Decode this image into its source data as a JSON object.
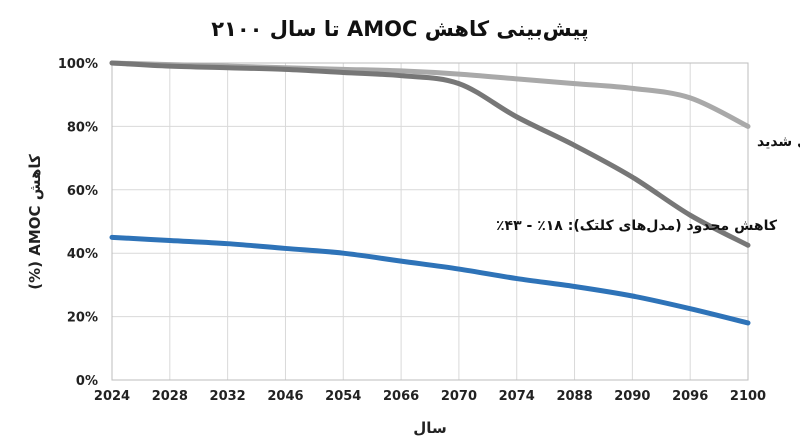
{
  "chart_data": {
    "type": "line",
    "title": "پیش‌بینی کاهش AMOC تا سال ۲۱۰۰",
    "xlabel": "سال",
    "ylabel": "کاهش AMOC (%)",
    "categories": [
      "2024",
      "2028",
      "2032",
      "2046",
      "2054",
      "2066",
      "2070",
      "2074",
      "2088",
      "2090",
      "2096",
      "2100"
    ],
    "yticks": [
      "0%",
      "20%",
      "40%",
      "60%",
      "80%",
      "100%"
    ],
    "ylim": [
      0,
      100
    ],
    "grid": true,
    "series": [
      {
        "color": "#a9a9a9",
        "values": [
          100,
          99.5,
          99,
          98.5,
          98,
          97.5,
          96.5,
          95,
          93.5,
          92,
          89,
          80
        ]
      },
      {
        "color": "#777777",
        "values": [
          100,
          99,
          98.5,
          98,
          97,
          96,
          93.5,
          83,
          74,
          64,
          52,
          42.5
        ]
      },
      {
        "color": "#2e73b8",
        "values": [
          45,
          44,
          43,
          41.5,
          40,
          37.5,
          35,
          32,
          29.5,
          26.5,
          22.5,
          18
        ]
      }
    ],
    "annotations": [
      {
        "text": "سناریوی فروپاشی شدید",
        "series": 1
      },
      {
        "text": "کاهش محدود (مدل‌های کلتک): ۱۸٪ - ۴۳٪",
        "series": 2
      }
    ]
  }
}
